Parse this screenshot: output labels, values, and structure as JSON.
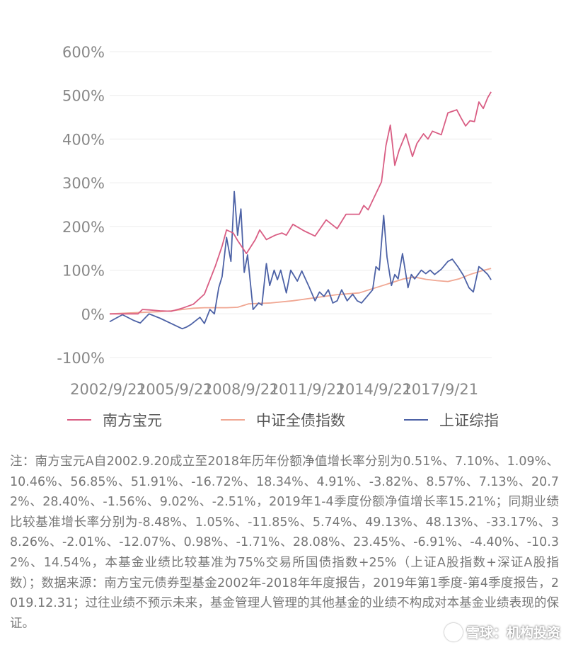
{
  "chart_data": {
    "type": "line",
    "ylim": [
      -100,
      600
    ],
    "y_ticks": [
      "600%",
      "500%",
      "400%",
      "300%",
      "200%",
      "100%",
      "0%",
      "-100%"
    ],
    "y_tick_values": [
      600,
      500,
      400,
      300,
      200,
      100,
      0,
      -100
    ],
    "x_ticks": [
      "2002/9/21",
      "2005/9/21",
      "2008/9/21",
      "2011/9/21",
      "2014/9/21",
      "2017/9/21"
    ],
    "x_tick_years": [
      2002.72,
      2005.72,
      2008.72,
      2011.72,
      2014.72,
      2017.72
    ],
    "xlim": [
      2002.72,
      2019.98
    ],
    "grid": "horizontal",
    "legend_position": "bottom-left",
    "series": [
      {
        "name": "南方宝元",
        "color": "#d95e84",
        "x": [
          2002.72,
          2003.0,
          2003.5,
          2004.0,
          2004.2,
          2004.5,
          2005.0,
          2005.5,
          2006.0,
          2006.5,
          2007.0,
          2007.5,
          2007.8,
          2008.0,
          2008.3,
          2008.5,
          2008.9,
          2009.3,
          2009.5,
          2009.8,
          2010.2,
          2010.5,
          2010.7,
          2011.0,
          2011.5,
          2012.0,
          2012.5,
          2013.0,
          2013.4,
          2014.0,
          2014.2,
          2014.4,
          2015.0,
          2015.2,
          2015.4,
          2015.6,
          2015.8,
          2016.1,
          2016.4,
          2016.6,
          2016.9,
          2017.1,
          2017.3,
          2017.7,
          2018.0,
          2018.4,
          2018.6,
          2018.8,
          2019.0,
          2019.2,
          2019.4,
          2019.6,
          2019.8,
          2019.95
        ],
        "values": [
          0,
          0,
          0,
          0,
          10,
          9,
          7,
          6,
          13,
          22,
          45,
          110,
          155,
          192,
          185,
          168,
          138,
          170,
          192,
          170,
          180,
          185,
          180,
          205,
          190,
          178,
          215,
          195,
          228,
          228,
          248,
          238,
          302,
          385,
          432,
          340,
          375,
          412,
          360,
          390,
          412,
          400,
          418,
          410,
          460,
          467,
          448,
          430,
          442,
          440,
          485,
          470,
          495,
          508
        ]
      },
      {
        "name": "中证全债指数",
        "color": "#f0a793",
        "x": [
          2002.72,
          2003.5,
          2004.5,
          2005.0,
          2005.5,
          2006.0,
          2006.5,
          2007.0,
          2007.5,
          2008.0,
          2008.5,
          2009.0,
          2010.0,
          2011.0,
          2012.0,
          2013.0,
          2014.0,
          2014.5,
          2015.0,
          2015.5,
          2016.0,
          2016.5,
          2017.0,
          2017.5,
          2018.0,
          2018.5,
          2019.0,
          2019.5,
          2019.95
        ],
        "values": [
          0,
          2,
          4,
          5,
          7,
          10,
          13,
          14,
          14,
          14,
          15,
          23,
          25,
          30,
          37,
          44,
          48,
          56,
          64,
          72,
          80,
          84,
          79,
          76,
          74,
          80,
          90,
          98,
          104
        ]
      },
      {
        "name": "上证综指",
        "color": "#4d62a6",
        "x": [
          2002.72,
          2003.0,
          2003.3,
          2003.8,
          2004.1,
          2004.5,
          2005.0,
          2005.5,
          2006.0,
          2006.2,
          2006.4,
          2006.8,
          2007.0,
          2007.25,
          2007.45,
          2007.65,
          2007.8,
          2008.0,
          2008.2,
          2008.35,
          2008.5,
          2008.65,
          2008.8,
          2008.95,
          2009.2,
          2009.45,
          2009.6,
          2009.8,
          2009.95,
          2010.15,
          2010.3,
          2010.45,
          2010.7,
          2010.9,
          2011.2,
          2011.4,
          2011.7,
          2012.0,
          2012.2,
          2012.4,
          2012.6,
          2012.8,
          2013.0,
          2013.2,
          2013.45,
          2013.7,
          2013.9,
          2014.1,
          2014.35,
          2014.6,
          2014.75,
          2014.9,
          2015.1,
          2015.25,
          2015.45,
          2015.6,
          2015.75,
          2015.95,
          2016.2,
          2016.35,
          2016.5,
          2016.8,
          2017.0,
          2017.2,
          2017.4,
          2017.7,
          2018.0,
          2018.2,
          2018.45,
          2018.7,
          2018.95,
          2019.15,
          2019.4,
          2019.6,
          2019.8,
          2019.95
        ],
        "values": [
          -18,
          -10,
          -2,
          -15,
          -21,
          0,
          -10,
          -22,
          -34,
          -30,
          -24,
          -8,
          -22,
          10,
          0,
          60,
          85,
          175,
          120,
          280,
          180,
          240,
          95,
          135,
          10,
          25,
          20,
          115,
          65,
          100,
          78,
          100,
          48,
          100,
          75,
          98,
          65,
          30,
          50,
          40,
          55,
          25,
          30,
          55,
          30,
          45,
          30,
          25,
          40,
          55,
          108,
          100,
          225,
          130,
          65,
          90,
          80,
          138,
          60,
          90,
          80,
          100,
          92,
          100,
          90,
          102,
          120,
          125,
          108,
          88,
          60,
          50,
          108,
          100,
          90,
          78
        ]
      }
    ]
  },
  "note": "注：南方宝元A自2002.9.20成立至2018年历年份额净值增长率分别为0.51%、7.10%、1.09%、10.46%、56.85%、51.91%、-16.72%、18.34%、4.91%、-3.82%、8.57%、7.13%、20.72%、28.40%、-1.56%、9.02%、-2.51%，2019年1-4季度份额净值增长率15.21%；同期业绩比较基准增长率分别为-8.48%、1.05%、-11.85%、5.74%、49.13%、48.13%、-33.17%、38.26%、-2.01%、-12.07%、0.98%、-1.71%、28.08%、23.45%、-6.91%、-4.40%、-10.32%、14.54%，本基金业绩比较基准为75%交易所国债指数+25%（上证A股指数+深证A股指数）；数据来源：南方宝元债券型基金2002年-2018年年度报告，2019年第1季度-第4季度报告，2019.12.31；过往业绩不预示未来，基金管理人管理的其他基金的业绩不构成对本基金业绩表现的保证。",
  "watermark": "雪球：机构投资"
}
